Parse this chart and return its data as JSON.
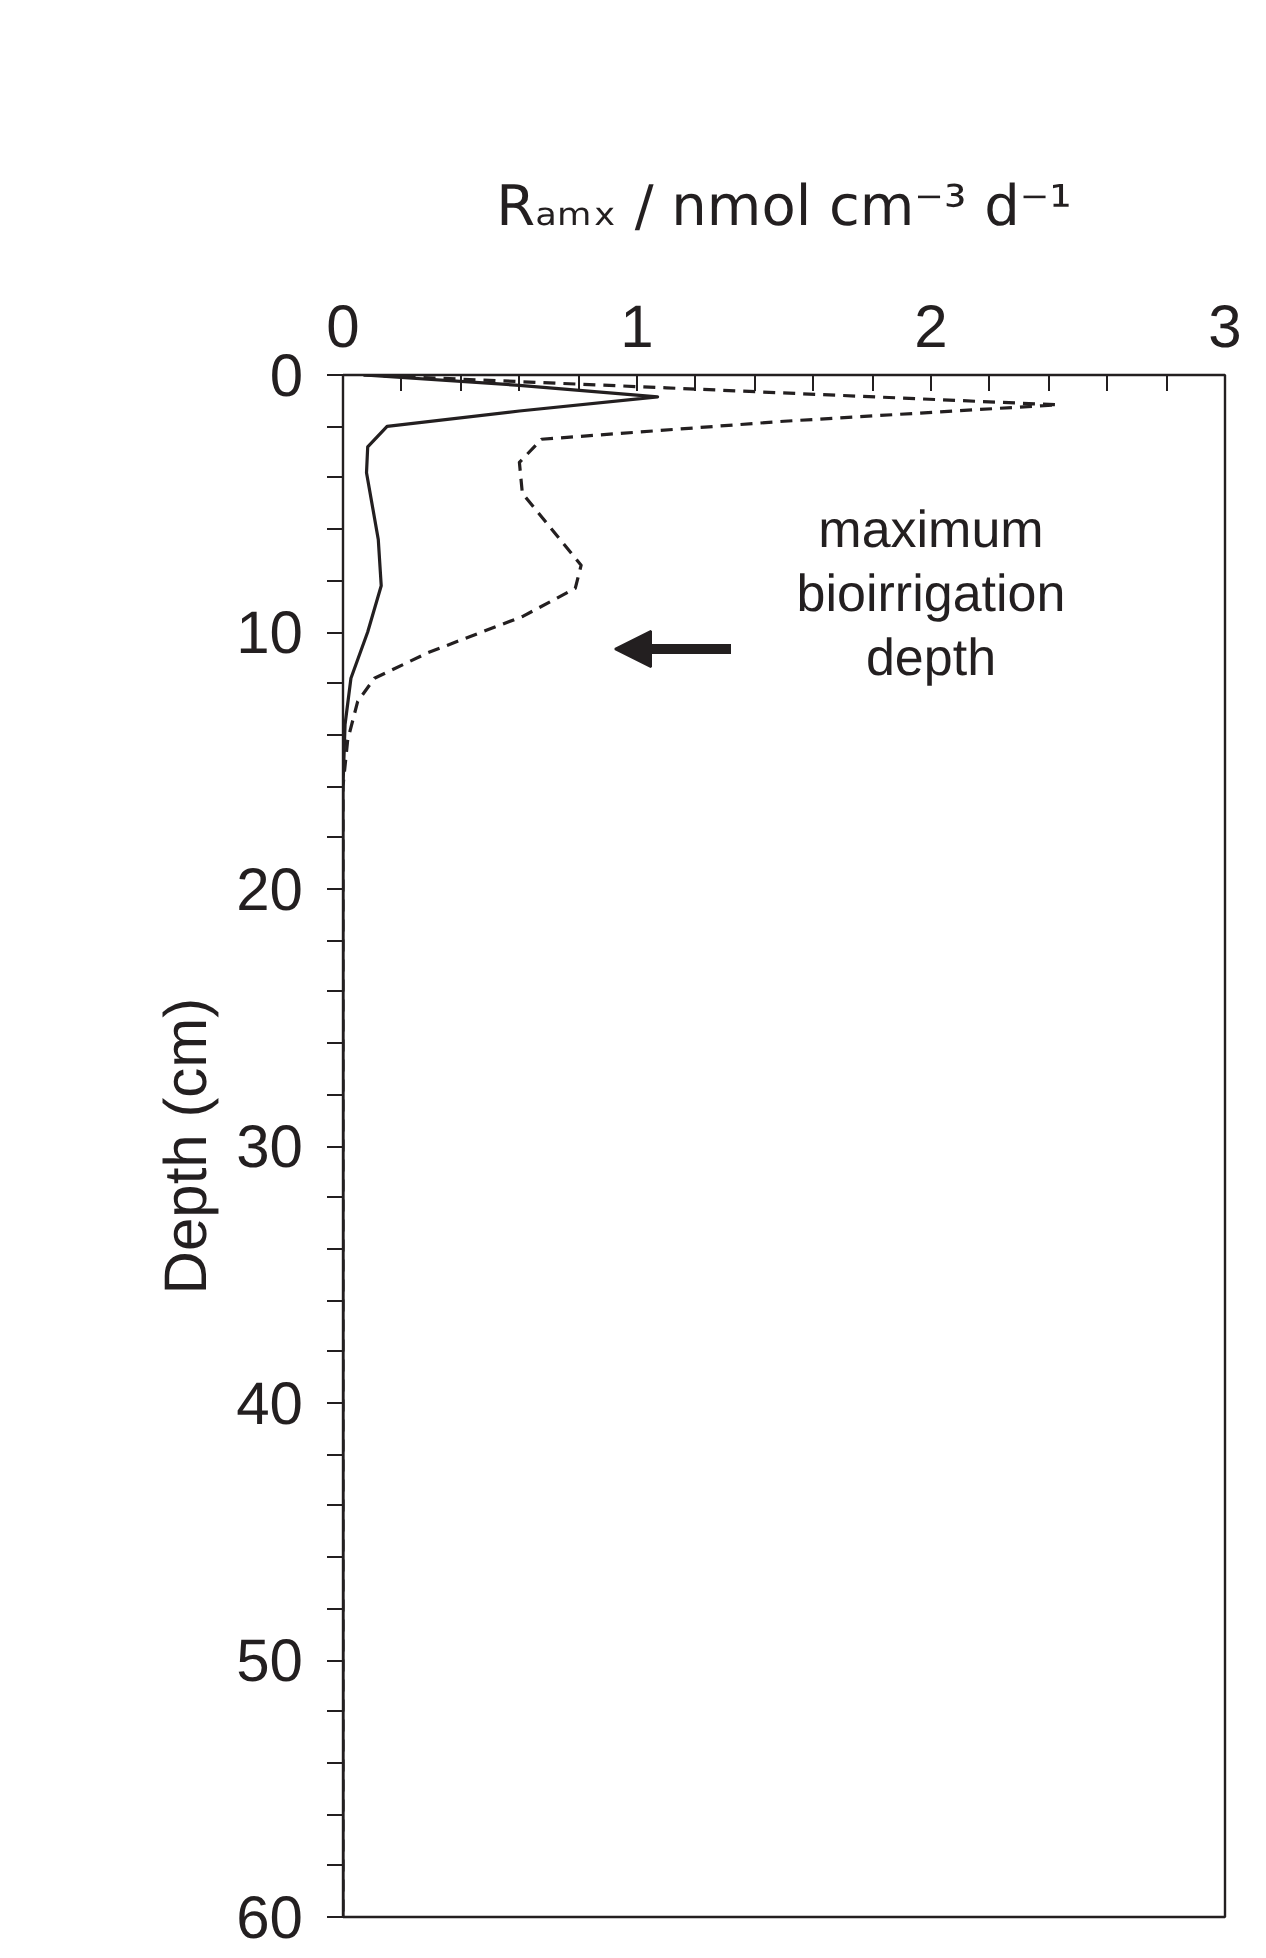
{
  "chart_data": {
    "type": "line",
    "xlabel": "Rₐₘₓ / nmol cm⁻³ d⁻¹",
    "ylabel": "Depth (cm)",
    "xlim": [
      0,
      3
    ],
    "ylim": [
      60,
      0
    ],
    "xticks": [
      0,
      {
        "value": 0.2,
        "label": null
      },
      {
        "value": 0.4,
        "label": null
      },
      {
        "value": 0.6,
        "label": null
      },
      {
        "value": 0.8,
        "label": null
      },
      1,
      {
        "value": 1.2,
        "label": null
      },
      {
        "value": 1.4,
        "label": null
      },
      {
        "value": 1.6,
        "label": null
      },
      {
        "value": 1.8,
        "label": null
      },
      2,
      {
        "value": 2.2,
        "label": null
      },
      {
        "value": 2.4,
        "label": null
      },
      {
        "value": 2.6,
        "label": null
      },
      {
        "value": 2.8,
        "label": null
      },
      3
    ],
    "yticks": [
      0,
      {
        "value": 2,
        "label": null
      },
      {
        "value": 4,
        "label": null
      },
      {
        "value": 6,
        "label": null
      },
      {
        "value": 8,
        "label": null
      },
      10,
      {
        "value": 12,
        "label": null
      },
      {
        "value": 14,
        "label": null
      },
      {
        "value": 16,
        "label": null
      },
      {
        "value": 18,
        "label": null
      },
      20,
      {
        "value": 22,
        "label": null
      },
      {
        "value": 24,
        "label": null
      },
      {
        "value": 26,
        "label": null
      },
      {
        "value": 28,
        "label": null
      },
      30,
      {
        "value": 32,
        "label": null
      },
      {
        "value": 34,
        "label": null
      },
      {
        "value": 36,
        "label": null
      },
      {
        "value": 38,
        "label": null
      },
      40,
      {
        "value": 42,
        "label": null
      },
      {
        "value": 44,
        "label": null
      },
      {
        "value": 46,
        "label": null
      },
      {
        "value": 48,
        "label": null
      },
      50,
      {
        "value": 52,
        "label": null
      },
      {
        "value": 54,
        "label": null
      },
      {
        "value": 56,
        "label": null
      },
      {
        "value": 58,
        "label": null
      },
      60
    ],
    "grid": false,
    "marker": "none",
    "series": [
      {
        "color": "#231f20",
        "line_style": "solid",
        "x": [
          0.07,
          0.6,
          1.07,
          0.6,
          0.15,
          0.084,
          0.08,
          0.12,
          0.13,
          0.084,
          0.027,
          0.007,
          0,
          0
        ],
        "values": [
          0,
          0.4,
          0.85,
          1.4,
          2,
          2.8,
          3.8,
          6.4,
          8.2,
          10,
          11.8,
          13.6,
          16,
          60
        ]
      },
      {
        "color": "#231f20",
        "line_style": "dashed",
        "x": [
          0.07,
          1.1,
          2.43,
          1.5,
          0.675,
          0.6,
          0.61,
          0.81,
          0.79,
          0.61,
          0.29,
          0.107,
          0.05,
          0.016,
          0,
          0
        ],
        "values": [
          0,
          0.5,
          1.16,
          1.8,
          2.5,
          3.4,
          4.6,
          7.4,
          8.3,
          9.4,
          10.8,
          11.8,
          12.7,
          14.2,
          16,
          60
        ]
      }
    ],
    "annotations": [
      "maximum\nbioirrigation\ndepth"
    ]
  }
}
